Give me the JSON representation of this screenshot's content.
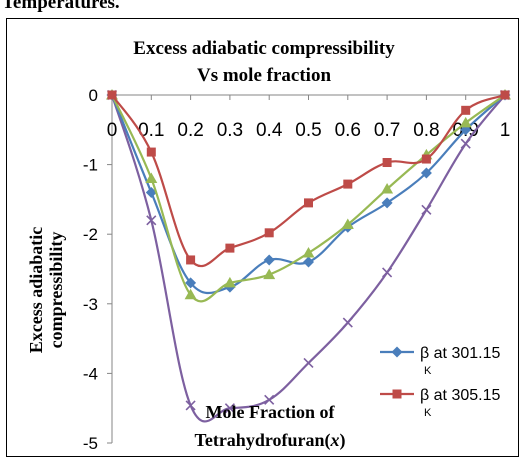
{
  "page_header_fragment": "Temperatures.",
  "chart_data": {
    "type": "line",
    "title": "Excess adiabatic compressibility",
    "subtitle": "Vs mole fraction",
    "xlabel_line1": "Mole Fraction of",
    "xlabel_line2_main": "Tetrahydrofuran(",
    "xlabel_line2_var": "x",
    "xlabel_line2_end": ")",
    "ylabel_line1": "Excess adiabatic",
    "ylabel_line2": "compressibility",
    "xlim": [
      0,
      1
    ],
    "ylim": [
      -5,
      0
    ],
    "x_tick_labels": [
      "0",
      "0.1",
      "0.2",
      "0.3",
      "0.4",
      "0.5",
      "0.6",
      "0.7",
      "0.8",
      "0.9",
      "1"
    ],
    "y_tick_labels": [
      "0",
      "-1",
      "-2",
      "-3",
      "-4",
      "-5"
    ],
    "y_ticks": [
      0,
      -1,
      -2,
      -3,
      -4,
      -5
    ],
    "grid": false,
    "legend_position": "bottom-right",
    "x": [
      0,
      0.1,
      0.2,
      0.3,
      0.4,
      0.5,
      0.6,
      0.7,
      0.8,
      0.9,
      1
    ],
    "series": [
      {
        "name": "β at 301.15 K",
        "legend_main": "β at 301.15",
        "legend_unit": "K",
        "color": "#4a7ebb",
        "marker": "diamond",
        "values": [
          0,
          -1.4,
          -2.7,
          -2.76,
          -2.37,
          -2.4,
          -1.9,
          -1.55,
          -1.12,
          -0.5,
          0
        ]
      },
      {
        "name": "β at 305.15 K",
        "legend_main": "β at 305.15",
        "legend_unit": "K",
        "color": "#be4b48",
        "marker": "square",
        "values": [
          0,
          -0.82,
          -2.37,
          -2.2,
          -1.98,
          -1.55,
          -1.28,
          -0.97,
          -0.92,
          -0.22,
          0
        ]
      },
      {
        "name": "",
        "color": "#98b954",
        "marker": "triangle",
        "values": [
          0,
          -1.2,
          -2.87,
          -2.7,
          -2.58,
          -2.27,
          -1.86,
          -1.35,
          -0.86,
          -0.4,
          0
        ]
      },
      {
        "name": "",
        "color": "#7d60a0",
        "marker": "x",
        "values": [
          0,
          -1.8,
          -4.46,
          -4.5,
          -4.38,
          -3.85,
          -3.27,
          -2.55,
          -1.65,
          -0.7,
          0
        ]
      }
    ]
  }
}
